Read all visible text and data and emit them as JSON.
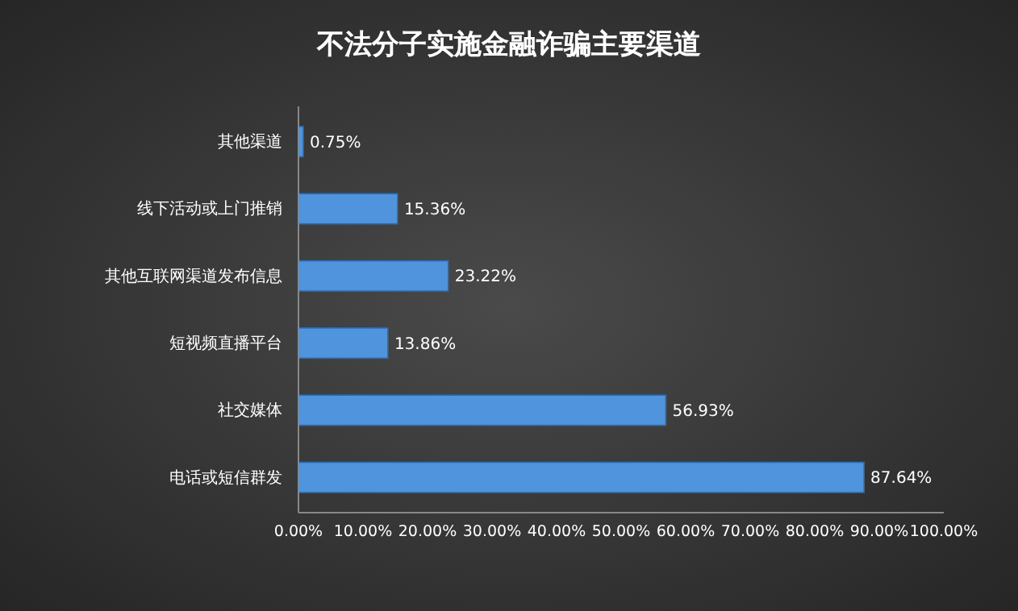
{
  "chart_data": {
    "type": "bar",
    "orientation": "horizontal",
    "title": "不法分子实施金融诈骗主要渠道",
    "categories": [
      "其他渠道",
      "线下活动或上门推销",
      "其他互联网渠道发布信息",
      "短视频直播平台",
      "社交媒体",
      "电话或短信群发"
    ],
    "values": [
      0.75,
      15.36,
      23.22,
      13.86,
      56.93,
      87.64
    ],
    "value_labels": [
      "0.75%",
      "15.36%",
      "23.22%",
      "13.86%",
      "56.93%",
      "87.64%"
    ],
    "color": "#4f94dc",
    "xlim": [
      0,
      100
    ],
    "xticks": [
      {
        "value": 0,
        "label": "0.00%"
      },
      {
        "value": 10,
        "label": "10.00%"
      },
      {
        "value": 20,
        "label": "20.00%"
      },
      {
        "value": 30,
        "label": "30.00%"
      },
      {
        "value": 40,
        "label": "40.00%"
      },
      {
        "value": 50,
        "label": "50.00%"
      },
      {
        "value": 60,
        "label": "60.00%"
      },
      {
        "value": 70,
        "label": "70.00%"
      },
      {
        "value": 80,
        "label": "80.00%"
      },
      {
        "value": 90,
        "label": "90.00%"
      },
      {
        "value": 100,
        "label": "100.00%"
      }
    ]
  }
}
